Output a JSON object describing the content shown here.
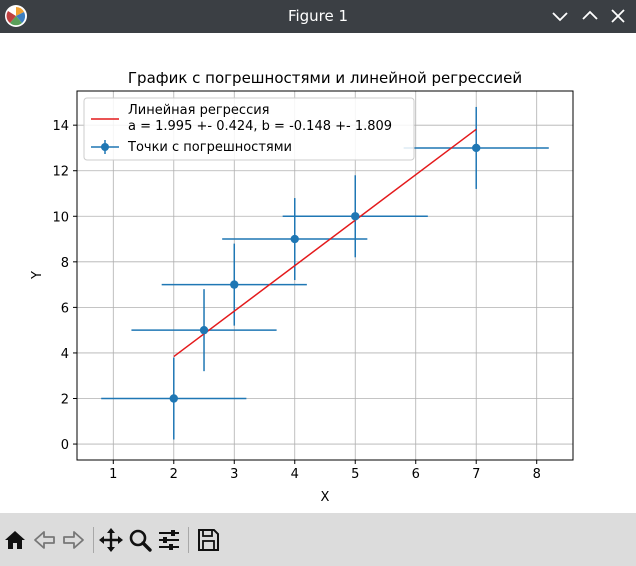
{
  "window": {
    "title": "Figure 1"
  },
  "icons": {
    "app": "matplotlib-logo-icon",
    "minimize": "chevron-down-icon",
    "maximize": "chevron-up-icon",
    "close": "close-icon",
    "toolbar": [
      "home-icon",
      "back-arrow-icon",
      "forward-arrow-icon",
      "pan-icon",
      "zoom-icon",
      "configure-subplots-icon",
      "save-icon"
    ]
  },
  "colors": {
    "series": "#1f77b4",
    "regression": "#e41a1c",
    "grid": "#b0b0b0",
    "toolbar_bg": "#dcdcdc",
    "titlebar_bg": "#3b3f44"
  },
  "chart_data": {
    "type": "scatter",
    "title": "График с погрешностями и линейной регрессией",
    "xlabel": "X",
    "ylabel": "Y",
    "xlim": [
      0.4,
      8.6
    ],
    "ylim": [
      -0.7,
      15.5
    ],
    "x_ticks": [
      1,
      2,
      3,
      4,
      5,
      6,
      7,
      8
    ],
    "y_ticks": [
      0,
      2,
      4,
      6,
      8,
      10,
      12,
      14
    ],
    "grid": true,
    "legend_position": "top-left",
    "series": [
      {
        "name": "Точки с погрешностями",
        "kind": "errorbar",
        "x": [
          2,
          2.5,
          3,
          4,
          5,
          7
        ],
        "y": [
          2,
          5,
          7,
          9,
          10,
          13
        ],
        "xerr": [
          1.2,
          1.2,
          1.2,
          1.2,
          1.2,
          1.2
        ],
        "yerr": [
          1.8,
          1.8,
          1.8,
          1.8,
          1.8,
          1.8
        ]
      },
      {
        "name": "Линейная регрессия\na = 1.995 +- 0.424, b = -0.148 +- 1.809",
        "kind": "line",
        "slope": 1.995,
        "intercept": -0.148,
        "x_range": [
          2,
          7
        ]
      }
    ]
  }
}
